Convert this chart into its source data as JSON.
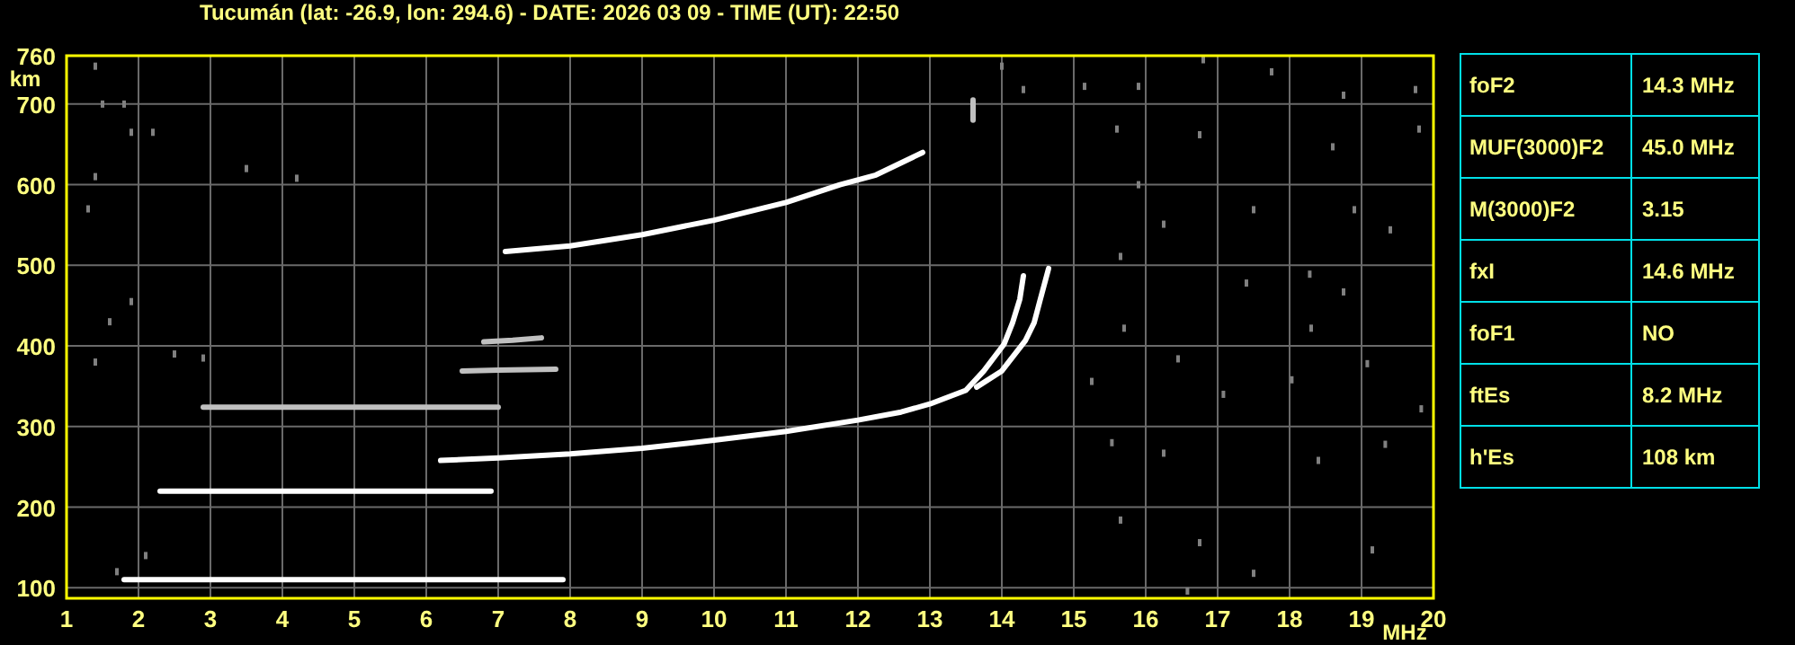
{
  "chart_data": [
    {
      "type": "line",
      "title": "Tucumán (lat: -26.9, lon: 294.6) - DATE: 2026 03 09 - TIME (UT): 22:50",
      "xlabel": "MHz",
      "ylabel": "km",
      "xlim": [
        1,
        20
      ],
      "ylim": [
        87,
        760
      ],
      "xticks": [
        1,
        2,
        3,
        4,
        5,
        6,
        7,
        8,
        9,
        10,
        11,
        12,
        13,
        14,
        15,
        16,
        17,
        18,
        19,
        20
      ],
      "yticks": [
        100,
        200,
        300,
        400,
        500,
        600,
        700,
        760
      ],
      "grid": true,
      "series": [
        {
          "color": "#ffffff",
          "x": [
            1.8,
            3,
            4,
            5,
            6,
            7,
            7.9
          ],
          "values": [
            110,
            110,
            110,
            110,
            110,
            110,
            110
          ]
        },
        {
          "color": "#ffffff",
          "x": [
            2.3,
            3,
            4,
            5,
            6,
            6.9
          ],
          "values": [
            220,
            220,
            220,
            220,
            220,
            220
          ]
        },
        {
          "color": "#c0c0c0",
          "x": [
            2.9,
            3.5,
            4.5,
            5.3,
            6,
            7
          ],
          "values": [
            324,
            324,
            324,
            324,
            324,
            324
          ]
        },
        {
          "color": "#c0c0c0",
          "x": [
            6.5,
            7,
            7.8
          ],
          "values": [
            369,
            370,
            371
          ]
        },
        {
          "color": "#c0c0c0",
          "x": [
            6.8,
            7.2,
            7.6
          ],
          "values": [
            405,
            407,
            410
          ]
        },
        {
          "color": "#ffffff",
          "x": [
            6.2,
            7,
            8,
            9,
            10,
            11,
            12,
            12.6,
            13,
            13.5,
            13.75,
            14.03,
            14.15,
            14.25,
            14.3
          ],
          "values": [
            258,
            261,
            266,
            273,
            283,
            294,
            308,
            318,
            328,
            345,
            369,
            402,
            429,
            458,
            487
          ]
        },
        {
          "color": "#ffffff",
          "x": [
            13.65,
            14,
            14.33,
            14.45,
            14.53,
            14.65
          ],
          "values": [
            349,
            369,
            407,
            429,
            456,
            496
          ]
        },
        {
          "color": "#ffffff",
          "x": [
            7.1,
            8,
            9,
            10,
            11,
            11.75,
            12.25,
            12.9
          ],
          "values": [
            517,
            524,
            538,
            556,
            578,
            600,
            612,
            640
          ]
        },
        {
          "color": "#c0c0c0",
          "x": [
            13.6,
            13.6
          ],
          "values": [
            680,
            705
          ]
        },
        {
          "type": "scatter",
          "marker": "square",
          "color": "#808080",
          "x": [
            1.4,
            1.5,
            1.8,
            1.9,
            1.4,
            2.2,
            1.3,
            1.9,
            1.6,
            2.5,
            1.4,
            2.9,
            3.5,
            4.2,
            1.7,
            2.1,
            14,
            14.3,
            15.15,
            15.9,
            16.8,
            17.75,
            18.75,
            19.75,
            15.6,
            16.75,
            18.6,
            19.8,
            15.9,
            17.5,
            18.9,
            16.25,
            19.4,
            15.65,
            18.28,
            17.4,
            18.75,
            15.7,
            18.3,
            16.45,
            19.08,
            18.03,
            15.25,
            17.08,
            19.83,
            15.53,
            16.25,
            18.4,
            19.33,
            15.65,
            16.75,
            19.15,
            17.5,
            16.58
          ],
          "values": [
            747,
            700,
            700,
            665,
            610,
            665,
            570,
            455,
            430,
            390,
            380,
            385,
            620,
            608,
            120,
            140,
            747,
            718,
            722,
            722,
            755,
            740,
            711,
            718,
            669,
            662,
            647,
            669,
            600,
            569,
            569,
            551,
            544,
            511,
            489,
            478,
            467,
            422,
            422,
            384,
            378,
            358,
            356,
            340,
            322,
            280,
            267,
            258,
            278,
            184,
            156,
            147,
            118,
            96
          ]
        }
      ]
    },
    {
      "type": "other",
      "annotations": [
        "foF2",
        "14.3 MHz",
        "MUF(3000)F2",
        "45.0 MHz",
        "M(3000)F2",
        "3.15",
        "fxI",
        "14.6 MHz",
        "foF1",
        "NO",
        "ftEs",
        "8.2 MHz",
        "h'Es",
        "108 km"
      ]
    }
  ]
}
